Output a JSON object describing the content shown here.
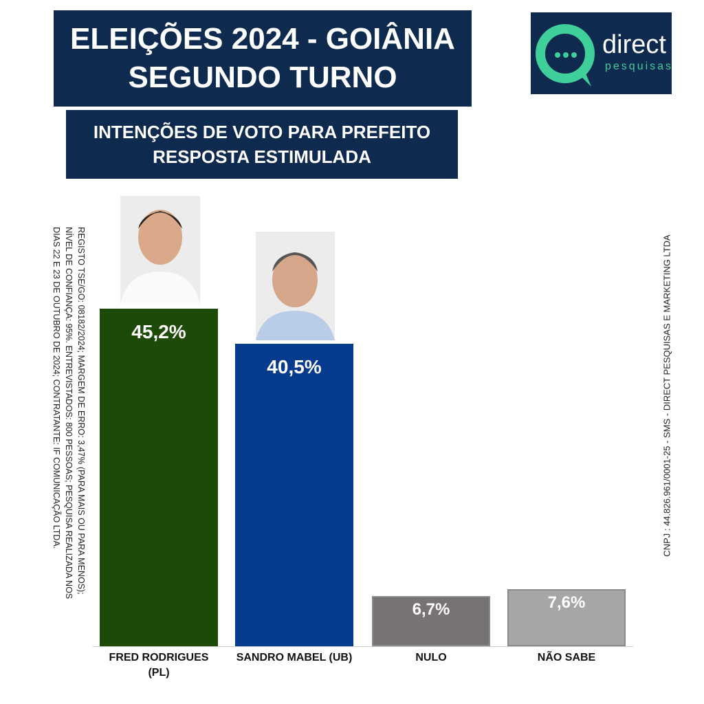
{
  "header": {
    "title_lines": [
      "ELEIÇÕES 2024 - GOIÂNIA",
      "SEGUNDO TURNO"
    ],
    "subtitle_lines": [
      "INTENÇÕES DE VOTO PARA PREFEITO",
      "RESPOSTA ESTIMULADA"
    ]
  },
  "logo": {
    "name": "direct",
    "tagline": "pesquisas"
  },
  "notes": {
    "left": [
      "REGISTO TSE/GO: 08182/2024; MARGEM DE ERRO: 3,47% (PARA MAIS OU PARA MENOS);",
      "NÍVEL DE CONFIANÇA: 95%. ENTREVISTADOS: 800 PESSOAS; PESQUISA REALIZADA NOS",
      "DIAS 22 E 23 DE OUTUBRO DE 2024; CONTRATANTE: IF COMUNICAÇÃO LTDA."
    ],
    "right": "CNPJ : 44.826.961/0001-25 - SMS - DIRECT PESQUISAS E MARKETING LTDA"
  },
  "chart_data": {
    "type": "bar",
    "categories": [
      "FRED RODRIGUES (PL)",
      "SANDRO MABEL (UB)",
      "NULO",
      "NÃO SABE"
    ],
    "values": [
      45.2,
      40.5,
      6.7,
      7.6
    ],
    "value_labels": [
      "45,2%",
      "40,5%",
      "6,7%",
      "7,6%"
    ],
    "colors": [
      "#1e4a08",
      "#063a8c",
      "#777372",
      "#a6a6a6"
    ]
  }
}
